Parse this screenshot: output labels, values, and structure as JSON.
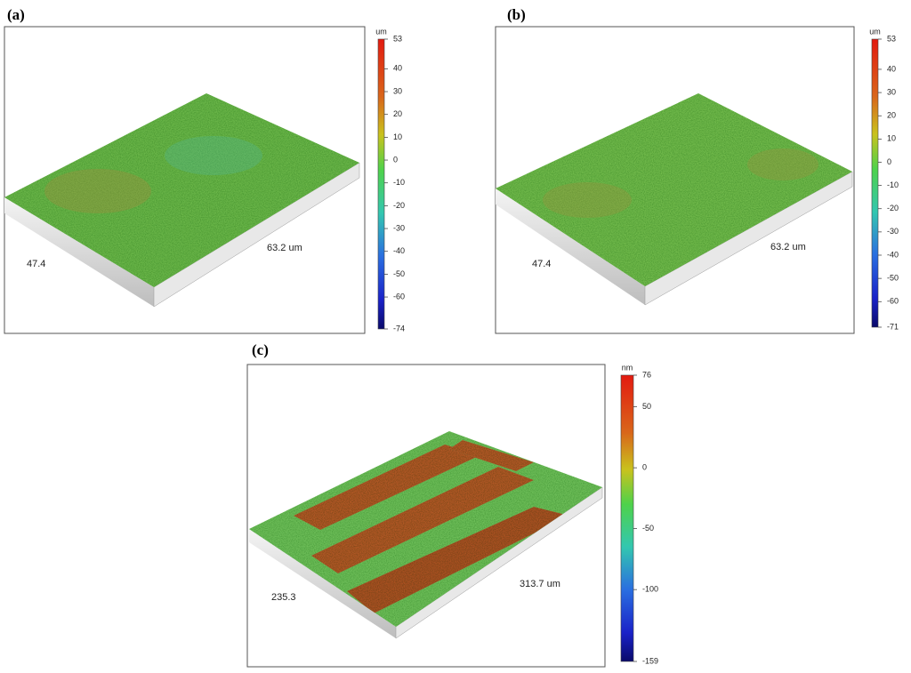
{
  "panels": [
    {
      "label": "(a)",
      "unit": "um",
      "length_label": "63.2 um",
      "width_label": "47.4",
      "colorbar_ticks": [
        53,
        40,
        30,
        20,
        10,
        0,
        -10,
        -20,
        -30,
        -40,
        -50,
        -60,
        -74
      ]
    },
    {
      "label": "(b)",
      "unit": "um",
      "length_label": "63.2 um",
      "width_label": "47.4",
      "colorbar_ticks": [
        53,
        40,
        30,
        20,
        10,
        0,
        -10,
        -20,
        -30,
        -40,
        -50,
        -60,
        -71
      ]
    },
    {
      "label": "(c)",
      "unit": "nm",
      "length_label": "313.7 um",
      "width_label": "235.3",
      "colorbar_ticks": [
        76,
        50,
        0,
        -50,
        -100,
        -159
      ]
    }
  ]
}
